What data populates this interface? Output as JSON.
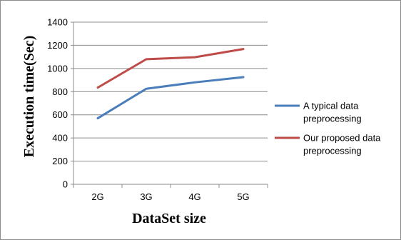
{
  "chart_data": {
    "type": "line",
    "categories": [
      "2G",
      "3G",
      "4G",
      "5G"
    ],
    "series": [
      {
        "name": "A typical data preprocessing",
        "name_lines": [
          "A typical data",
          "preprocessing"
        ],
        "color": "#4a7ebb",
        "values": [
          570,
          825,
          880,
          925
        ]
      },
      {
        "name": "Our proposed data preprocessing",
        "name_lines": [
          "Our proposed data",
          "preprocessing"
        ],
        "color": "#be4b48",
        "values": [
          835,
          1080,
          1097,
          1168
        ]
      }
    ],
    "xlabel": "DataSet size",
    "ylabel": "Execution time(Sec)",
    "ylim": [
      0,
      1400
    ],
    "yticks": [
      0,
      200,
      400,
      600,
      800,
      1000,
      1200,
      1400
    ],
    "grid": true,
    "legend_position": "right"
  }
}
